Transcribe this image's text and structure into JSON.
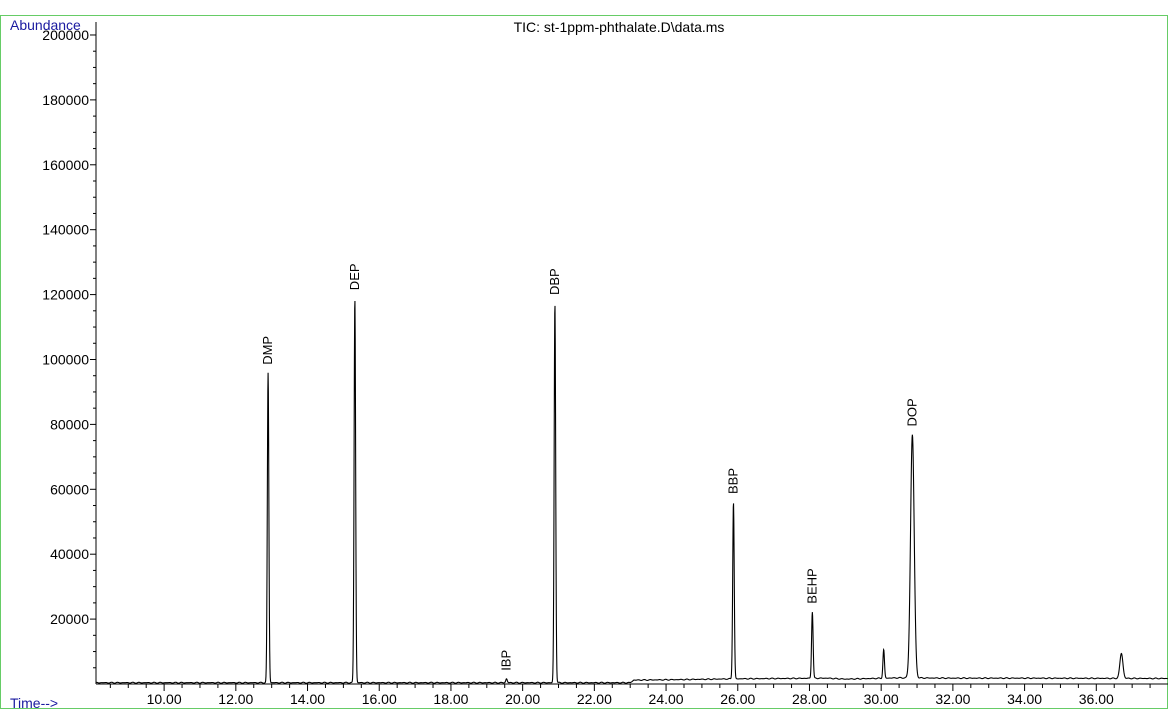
{
  "chart_data": {
    "type": "line",
    "title": "TIC: st-1ppm-phthalate.D\\data.ms",
    "ylabel": "Abundance",
    "xlabel": "Time-->",
    "xlim": [
      8.1,
      38.0
    ],
    "ylim": [
      0,
      204000
    ],
    "x_ticks": [
      "10.00",
      "12.00",
      "14.00",
      "16.00",
      "18.00",
      "20.00",
      "22.00",
      "24.00",
      "26.00",
      "28.00",
      "30.00",
      "32.00",
      "34.00",
      "36.00"
    ],
    "y_ticks": [
      "20000",
      "40000",
      "60000",
      "80000",
      "100000",
      "120000",
      "140000",
      "160000",
      "180000",
      "200000"
    ],
    "grid": false,
    "line_color": "#000000",
    "label_color": "#1a1aa0",
    "frame_color": "#66cc66",
    "baseline": [
      [
        8.1,
        400
      ],
      [
        23.0,
        400
      ],
      [
        23.1,
        1200
      ],
      [
        24.0,
        1300
      ],
      [
        26.0,
        1600
      ],
      [
        28.5,
        1800
      ],
      [
        29.0,
        1500
      ],
      [
        30.5,
        1900
      ],
      [
        32.0,
        1800
      ],
      [
        34.0,
        1800
      ],
      [
        38.0,
        1700
      ]
    ],
    "peaks": [
      {
        "label": "DMP",
        "rt": 12.9,
        "height": 95500,
        "width": 0.05
      },
      {
        "label": "DEP",
        "rt": 15.32,
        "height": 118500,
        "width": 0.05
      },
      {
        "label": "IBP",
        "rt": 19.55,
        "height": 1200,
        "width": 0.05
      },
      {
        "label": "DBP",
        "rt": 20.9,
        "height": 117000,
        "width": 0.05
      },
      {
        "label": "BBP",
        "rt": 25.88,
        "height": 54500,
        "width": 0.05
      },
      {
        "label": "BEHP",
        "rt": 28.08,
        "height": 20500,
        "width": 0.05
      },
      {
        "label": "",
        "rt": 30.07,
        "height": 8800,
        "width": 0.05
      },
      {
        "label": "DOP",
        "rt": 30.87,
        "height": 75000,
        "width": 0.12
      },
      {
        "label": "",
        "rt": 36.7,
        "height": 7700,
        "width": 0.1
      }
    ]
  }
}
